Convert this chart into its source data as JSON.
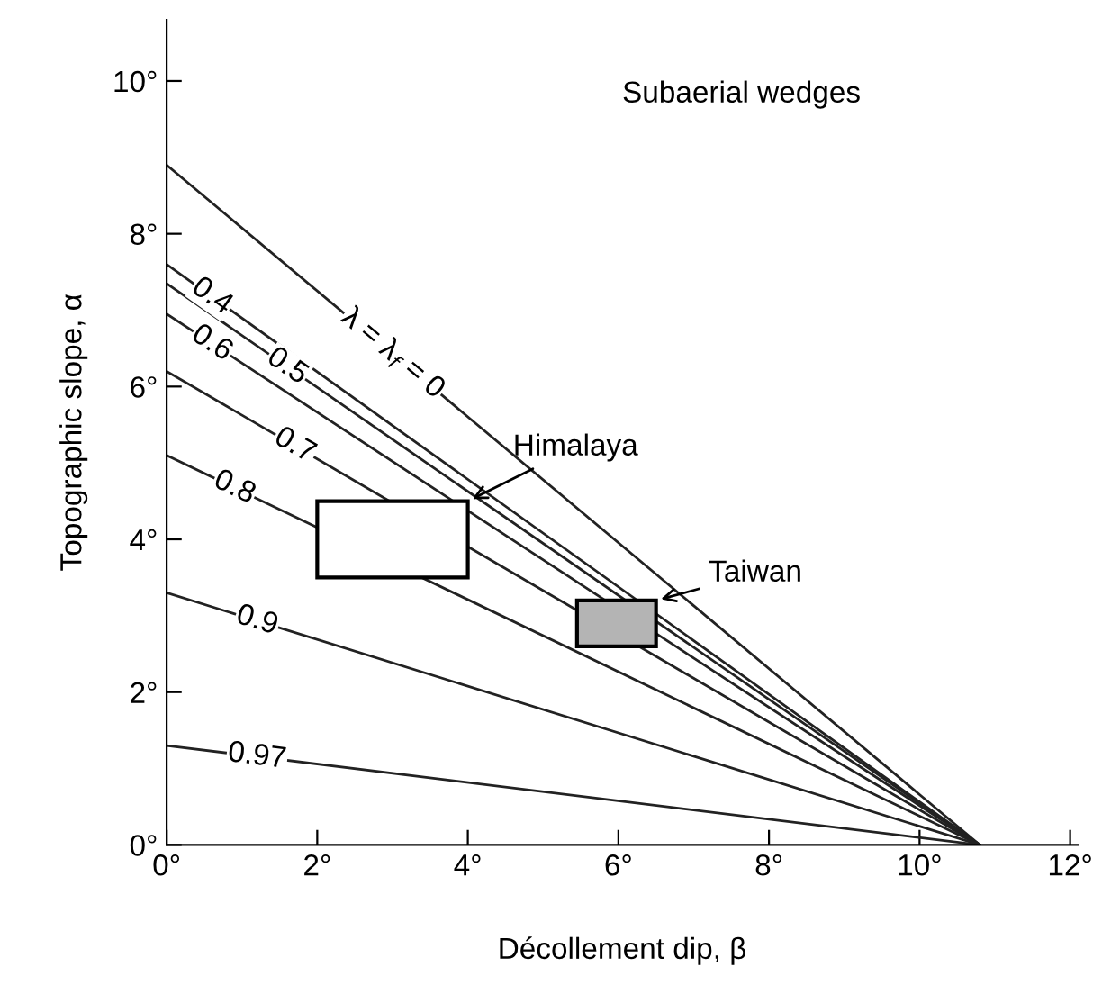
{
  "chart_data": {
    "type": "line",
    "xlabel": "Décollement dip, β",
    "ylabel": "Topographic slope, α",
    "xlim": [
      0,
      12.1
    ],
    "ylim": [
      0,
      10.8
    ],
    "xticks": [
      {
        "value": 0,
        "label": "0°"
      },
      {
        "value": 2,
        "label": "2°"
      },
      {
        "value": 4,
        "label": "4°"
      },
      {
        "value": 6,
        "label": "6°"
      },
      {
        "value": 8,
        "label": "8°"
      },
      {
        "value": 10,
        "label": "10°"
      },
      {
        "value": 12,
        "label": "12°"
      }
    ],
    "yticks": [
      {
        "value": 0,
        "label": "0°"
      },
      {
        "value": 2,
        "label": "2°"
      },
      {
        "value": 4,
        "label": "4°"
      },
      {
        "value": 6,
        "label": "6°"
      },
      {
        "value": 8,
        "label": "8°"
      },
      {
        "value": 10,
        "label": "10°"
      }
    ],
    "grid": false,
    "legend": false,
    "marker": "none",
    "line_style": "solid",
    "series": [
      {
        "name": "λ = λ$_{f}$ = 0",
        "color": "#222222",
        "x": [
          0,
          10.8
        ],
        "values": [
          8.9,
          0
        ]
      },
      {
        "name": "0.4",
        "color": "#222222",
        "x": [
          0,
          10.8
        ],
        "values": [
          7.6,
          0
        ]
      },
      {
        "name": "0.5",
        "color": "#222222",
        "x": [
          0,
          10.8
        ],
        "values": [
          7.35,
          0
        ]
      },
      {
        "name": "0.6",
        "color": "#222222",
        "x": [
          0,
          10.8
        ],
        "values": [
          6.95,
          0
        ]
      },
      {
        "name": "0.7",
        "color": "#222222",
        "x": [
          0,
          10.8
        ],
        "values": [
          6.2,
          0
        ]
      },
      {
        "name": "0.8",
        "color": "#222222",
        "x": [
          0,
          10.8
        ],
        "values": [
          5.1,
          0
        ]
      },
      {
        "name": "0.9",
        "color": "#222222",
        "x": [
          0,
          10.8
        ],
        "values": [
          3.3,
          0
        ]
      },
      {
        "name": "0.97",
        "color": "#222222",
        "x": [
          0,
          10.8
        ],
        "values": [
          1.3,
          0
        ]
      },
      {
        "type": "area",
        "color": "#ffffff",
        "x": [
          2.0,
          4.0,
          4.0,
          2.0,
          2.0
        ],
        "values": [
          3.5,
          3.5,
          4.5,
          4.5,
          3.5
        ]
      },
      {
        "type": "area",
        "color": "#b4b4b4",
        "x": [
          5.45,
          6.5,
          6.5,
          5.45,
          5.45
        ],
        "values": [
          2.6,
          2.6,
          3.2,
          3.2,
          2.6
        ]
      }
    ],
    "annotations": [
      "Subaerial wedges",
      {
        "text": "Himalaya",
        "x": 4.0,
        "y": 4.5
      },
      {
        "text": "Taiwan",
        "x": 6.5,
        "y": 3.2
      }
    ]
  }
}
